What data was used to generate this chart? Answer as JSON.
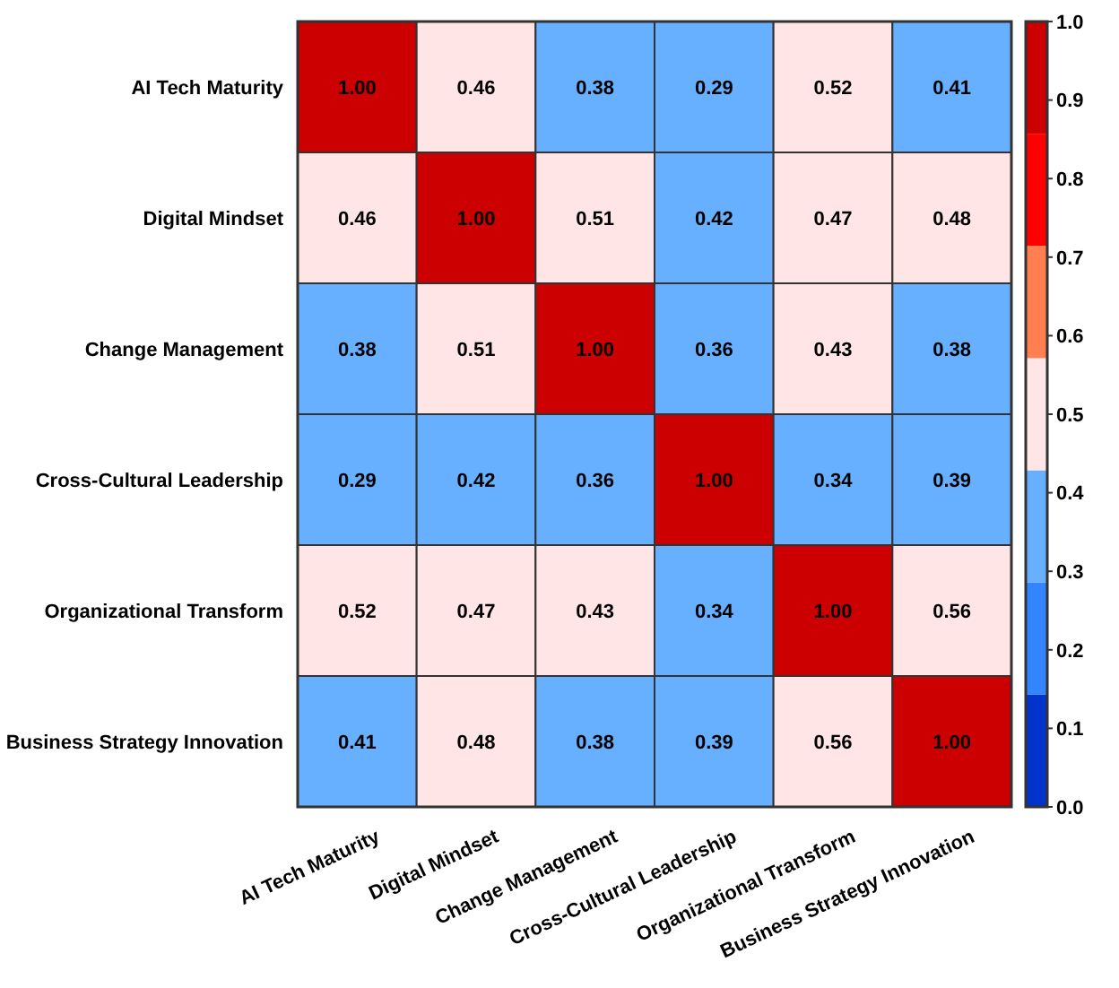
{
  "chart_data": {
    "type": "heatmap",
    "categories": [
      "AI Tech Maturity",
      "Digital Mindset",
      "Change Management",
      "Cross-Cultural Leadership",
      "Organizational Transform",
      "Business Strategy Innovation"
    ],
    "y_categories": [
      "AI Tech Maturity",
      "Digital Mindset",
      "Change Management",
      "Cross-Cultural Leadership",
      "Organizational Transform",
      "Business Strategy Innovation"
    ],
    "cells": [
      [
        1.0,
        0.46,
        0.38,
        0.29,
        0.52,
        0.41
      ],
      [
        0.46,
        1.0,
        0.51,
        0.42,
        0.47,
        0.48
      ],
      [
        0.38,
        0.51,
        1.0,
        0.36,
        0.43,
        0.38
      ],
      [
        0.29,
        0.42,
        0.36,
        1.0,
        0.34,
        0.39
      ],
      [
        0.52,
        0.47,
        0.43,
        0.34,
        1.0,
        0.56
      ],
      [
        0.41,
        0.48,
        0.38,
        0.39,
        0.56,
        1.0
      ]
    ],
    "cell_labels": [
      [
        "1.00",
        "0.46",
        "0.38",
        "0.29",
        "0.52",
        "0.41"
      ],
      [
        "0.46",
        "1.00",
        "0.51",
        "0.42",
        "0.47",
        "0.48"
      ],
      [
        "0.38",
        "0.51",
        "1.00",
        "0.36",
        "0.43",
        "0.38"
      ],
      [
        "0.29",
        "0.42",
        "0.36",
        "1.00",
        "0.34",
        "0.39"
      ],
      [
        "0.52",
        "0.47",
        "0.43",
        "0.34",
        "1.00",
        "0.56"
      ],
      [
        "0.41",
        "0.48",
        "0.38",
        "0.39",
        "0.56",
        "1.00"
      ]
    ],
    "colors": [
      "#0033cc",
      "#3385ff",
      "#66b0ff",
      "#ffe5e5",
      "#ff7f50",
      "#ff0000",
      "#cc0000"
    ],
    "clim": [
      0,
      1
    ],
    "cticks": [
      {
        "value": 0,
        "label": "0.0"
      },
      0.1,
      0.2,
      0.3,
      0.4,
      0.5,
      0.6,
      0.7,
      0.8,
      0.9,
      {
        "value": 1,
        "label": "1.0"
      }
    ],
    "data_labels": true
  }
}
